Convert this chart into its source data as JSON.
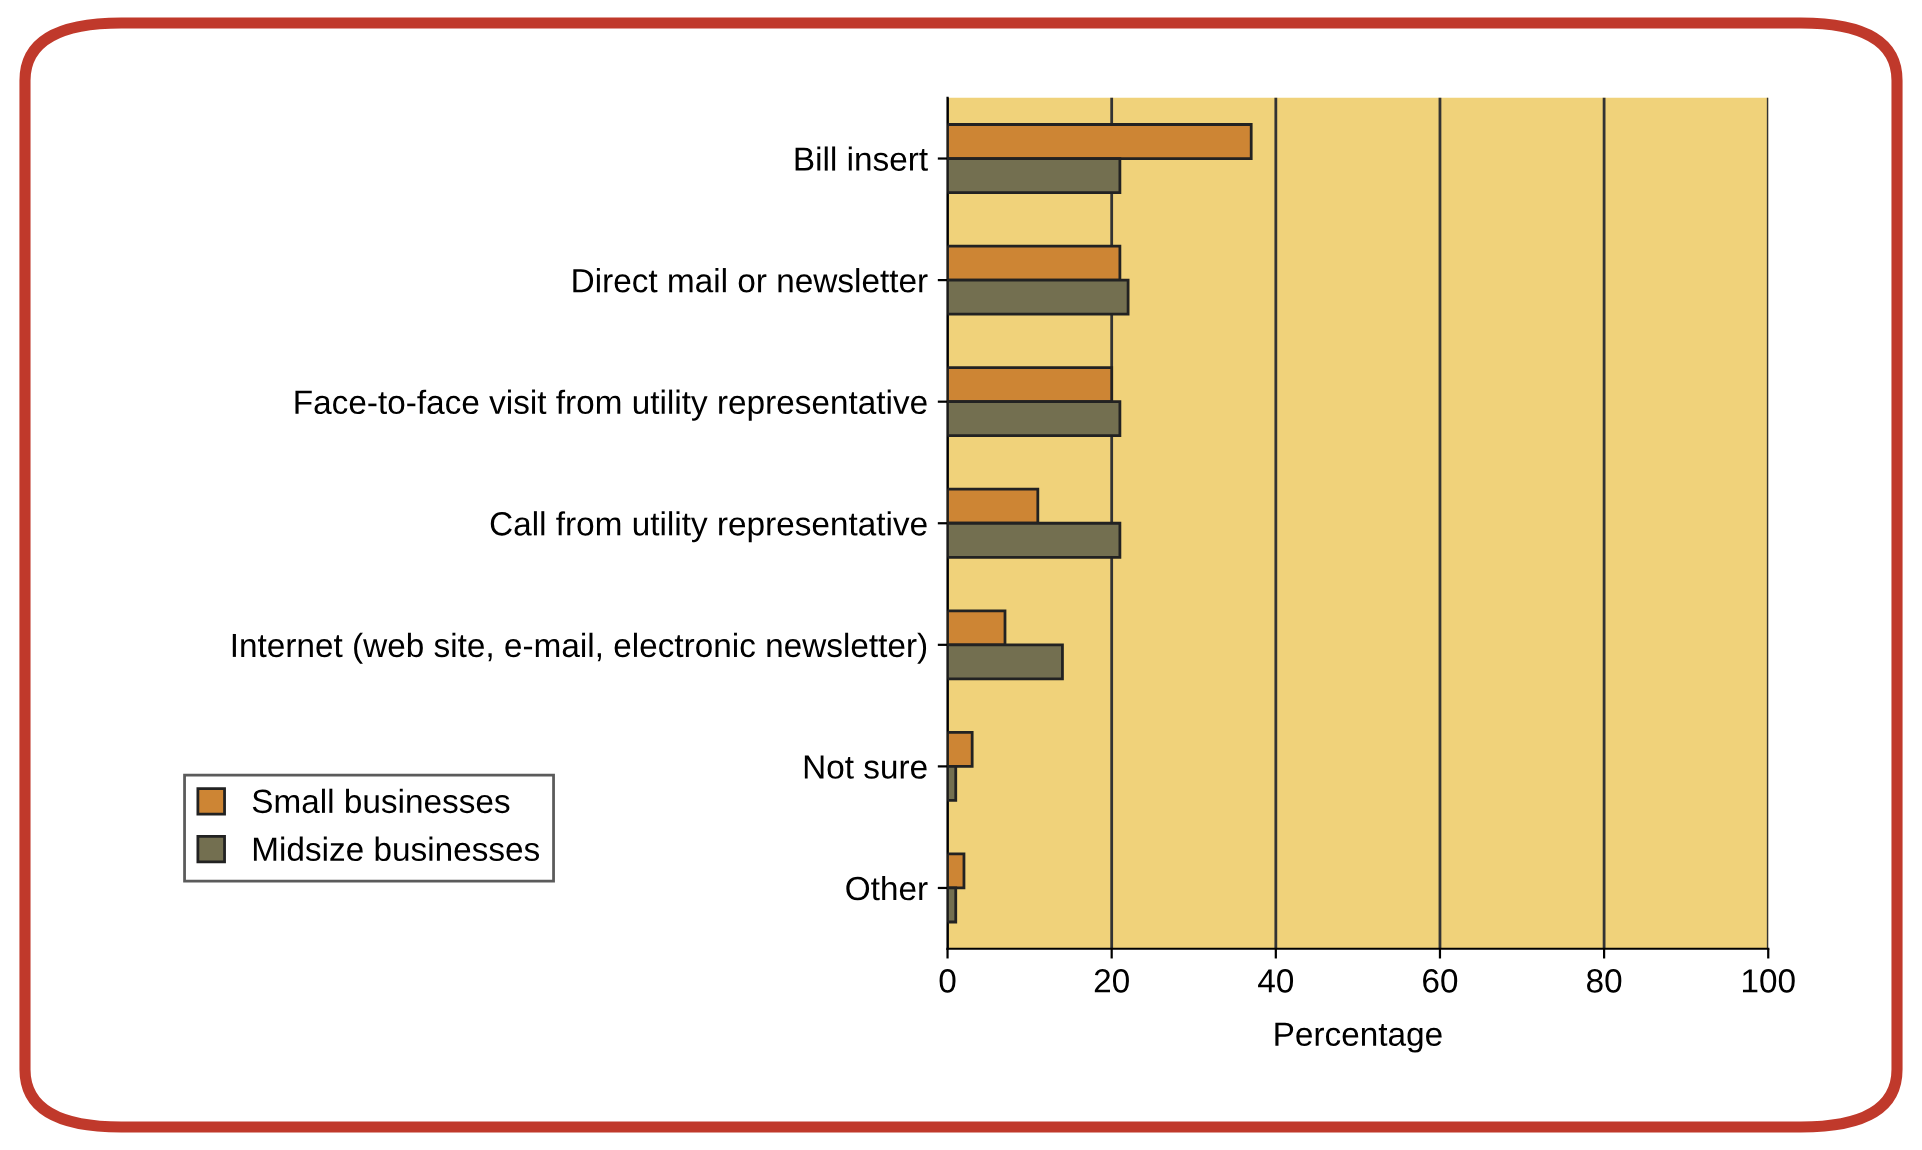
{
  "chart_data": {
    "type": "bar",
    "orientation": "horizontal",
    "xlabel": "Percentage",
    "categories": [
      "Bill insert",
      "Direct mail or newsletter",
      "Face-to-face visit from utility representative",
      "Call from utility representative",
      "Internet (web site, e-mail, electronic newsletter)",
      "Not sure",
      "Other"
    ],
    "series": [
      {
        "name": "Small businesses",
        "color": "#cd8534",
        "values": [
          37,
          21,
          20,
          11,
          7,
          3,
          2
        ]
      },
      {
        "name": "Midsize businesses",
        "color": "#736f50",
        "values": [
          21,
          22,
          21,
          21,
          14,
          1,
          1
        ]
      }
    ],
    "xlim": [
      0,
      100
    ],
    "xticks": [
      0,
      20,
      40,
      60,
      80,
      100
    ],
    "grid": "x",
    "legend": "bottom left"
  }
}
